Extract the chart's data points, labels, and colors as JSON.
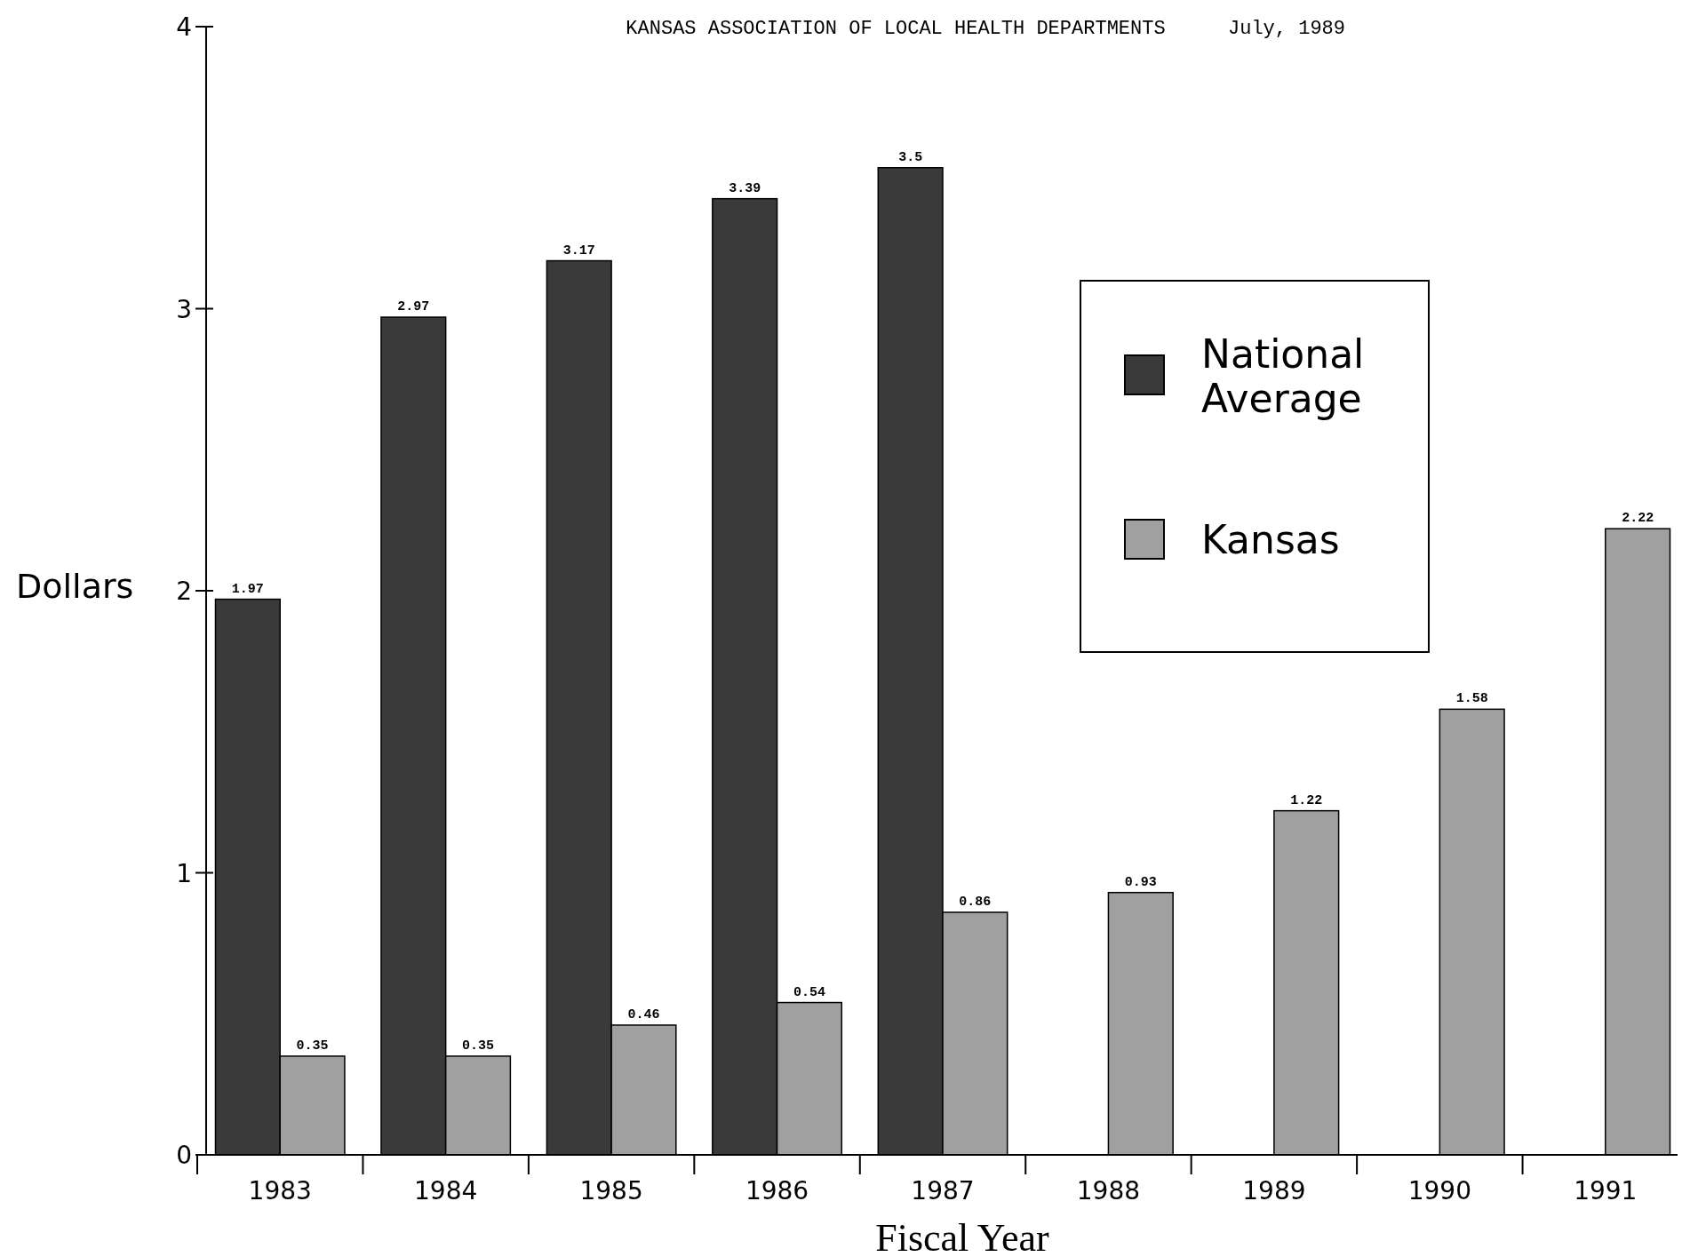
{
  "chart_data": {
    "type": "bar",
    "title": "KANSAS ASSOCIATION OF LOCAL HEALTH DEPARTMENTS",
    "annotations": [
      "July, 1989"
    ],
    "xlabel": "Fiscal Year",
    "ylabel": "Dollars",
    "categories": [
      "1983",
      "1984",
      "1985",
      "1986",
      "1987",
      "1988",
      "1989",
      "1990",
      "1991"
    ],
    "series": [
      {
        "name": "National Average",
        "color": "#3a3a3a",
        "values": [
          1.97,
          2.97,
          3.17,
          3.39,
          3.5,
          null,
          null,
          null,
          null
        ]
      },
      {
        "name": "Kansas",
        "color": "#a0a0a0",
        "values": [
          0.35,
          0.35,
          0.46,
          0.54,
          0.86,
          0.93,
          1.22,
          1.58,
          2.22
        ]
      }
    ],
    "ylim": [
      0,
      4
    ],
    "yticks": [
      0,
      1,
      2,
      3,
      4
    ],
    "data_labels": true,
    "legend": "top right",
    "grid": false
  }
}
